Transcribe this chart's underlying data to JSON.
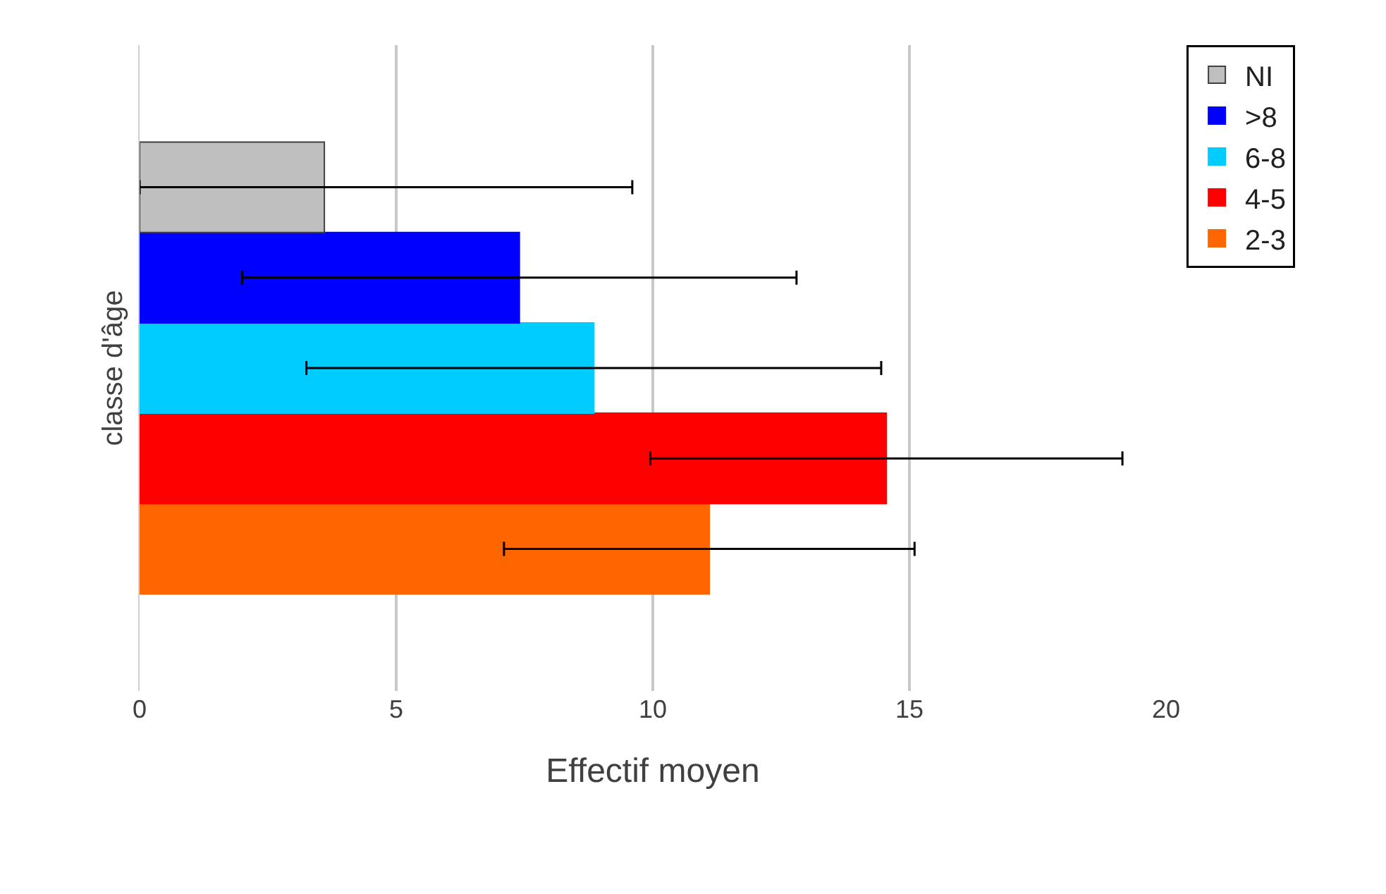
{
  "chart_data": {
    "type": "bar",
    "orientation": "horizontal",
    "xlabel": "Effectif moyen",
    "ylabel": "classe d'âge",
    "categories": [
      null
    ],
    "series": [
      {
        "name": "NI",
        "color": "#bfbfbf",
        "values": [
          3.6
        ],
        "errors": [
          [
            0,
            9.6
          ]
        ]
      },
      {
        "name": ">8",
        "color": "#0000ff",
        "values": [
          7.4
        ],
        "errors": [
          5.4
        ]
      },
      {
        "name": "6-8",
        "color": "#00ccff",
        "values": [
          8.85
        ],
        "errors": [
          5.6
        ]
      },
      {
        "name": "4-5",
        "color": "#ff0000",
        "values": [
          14.55
        ],
        "errors": [
          4.6
        ]
      },
      {
        "name": "2-3",
        "color": "#ff6600",
        "values": [
          11.1
        ],
        "errors": [
          4.0
        ]
      }
    ],
    "xlim": [
      0,
      20
    ],
    "xticks": [
      0,
      5,
      10,
      15,
      20
    ],
    "grid": "x",
    "legend": "top right",
    "tick_labels": "x"
  }
}
